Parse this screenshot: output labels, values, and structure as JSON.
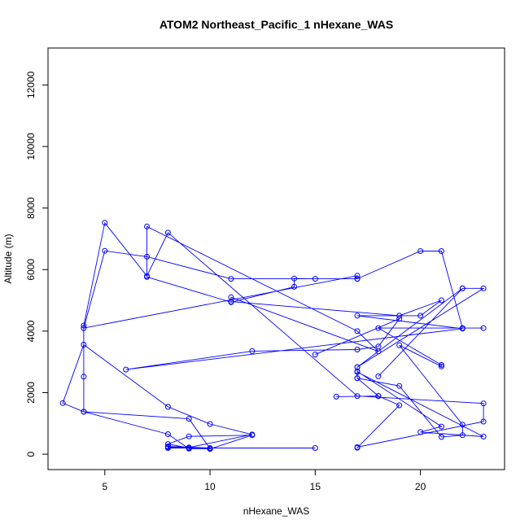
{
  "chart_data": {
    "type": "line",
    "title": "ATOM2 Northeast_Pacific_1 nHexane_WAS",
    "xlabel": "nHexane_WAS",
    "ylabel": "Altitude (m)",
    "xlim": [
      2.3,
      24.0
    ],
    "ylim": [
      -500,
      13200
    ],
    "xticks": [
      5,
      10,
      15,
      20
    ],
    "yticks": [
      0,
      2000,
      4000,
      6000,
      8000,
      10000,
      12000
    ],
    "line_color": "#0000ff",
    "grid": false,
    "legend": "none",
    "series": [
      {
        "x": [
          15,
          8,
          8,
          10,
          12,
          9,
          8,
          9,
          10,
          8,
          9,
          12,
          10,
          8,
          4,
          3,
          4,
          8,
          9,
          10,
          9,
          4,
          4,
          4,
          5,
          7,
          8,
          17,
          23,
          23,
          17,
          17,
          19,
          18,
          16,
          18,
          17,
          17,
          22,
          18,
          22,
          23,
          17,
          17,
          21,
          20,
          23,
          17,
          17,
          19,
          21,
          22,
          22,
          19,
          21,
          21,
          18,
          23,
          22,
          21,
          20,
          17,
          17,
          4,
          5,
          7,
          11,
          17,
          15,
          14,
          14,
          11,
          7,
          7,
          17,
          18,
          11,
          11,
          19,
          21,
          20,
          17,
          22,
          6,
          12,
          17,
          18,
          19,
          15
        ],
        "y": [
          200,
          200,
          230,
          170,
          620,
          580,
          330,
          200,
          200,
          250,
          220,
          640,
          980,
          1540,
          3560,
          1660,
          1380,
          650,
          180,
          180,
          1150,
          1380,
          2520,
          4180,
          7520,
          5790,
          7200,
          1890,
          1650,
          1060,
          230,
          210,
          1590,
          1890,
          1870,
          1890,
          2470,
          2830,
          5390,
          2530,
          5390,
          5390,
          2830,
          2690,
          900,
          720,
          570,
          2670,
          2470,
          2220,
          560,
          620,
          960,
          3540,
          2850,
          2900,
          4100,
          4100,
          4100,
          6600,
          6600,
          5700,
          5800,
          4100,
          6610,
          6420,
          5700,
          5700,
          5700,
          5710,
          5440,
          4940,
          5760,
          7400,
          4000,
          3340,
          5100,
          4960,
          4500,
          5000,
          4500,
          4500,
          4080,
          2750,
          3350,
          3400,
          3500,
          4400,
          3240
        ]
      }
    ]
  }
}
